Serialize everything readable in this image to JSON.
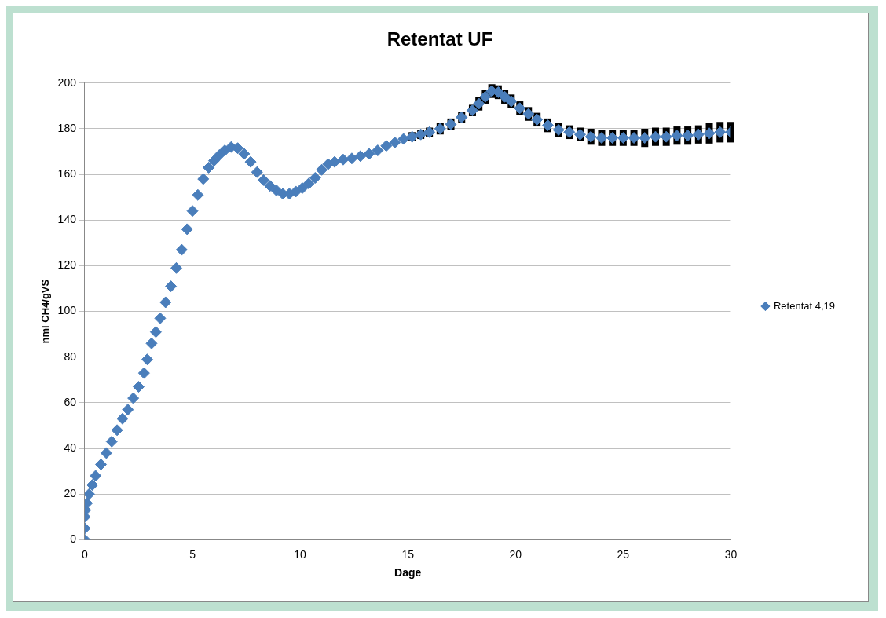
{
  "chart_data": {
    "type": "scatter",
    "title": "Retentat UF",
    "xlabel": "Dage",
    "ylabel": "nml CH4/gVS",
    "xlim": [
      0,
      30
    ],
    "xticks": [
      0,
      5,
      10,
      15,
      20,
      25,
      30
    ],
    "ylim": [
      0,
      200
    ],
    "yticks": [
      0,
      20,
      40,
      60,
      80,
      100,
      120,
      140,
      160,
      180,
      200
    ],
    "grid": "y",
    "legend": "right",
    "marker": "diamond",
    "series": [
      {
        "name": "Retentat 4,19",
        "color": "#4a7ebb",
        "x": [
          0,
          0,
          0,
          0.03,
          0.1,
          0.2,
          0.35,
          0.5,
          0.75,
          1,
          1.25,
          1.5,
          1.75,
          2,
          2.25,
          2.5,
          2.75,
          2.9,
          3.1,
          3.3,
          3.5,
          3.75,
          4,
          4.25,
          4.5,
          4.75,
          5,
          5.25,
          5.5,
          5.75,
          6,
          6.25,
          6.5,
          6.8,
          7.1,
          7.4,
          7.7,
          8,
          8.3,
          8.6,
          8.9,
          9.2,
          9.5,
          9.8,
          10.1,
          10.4,
          10.7,
          11,
          11.3,
          11.6,
          12,
          12.4,
          12.8,
          13.2,
          13.6,
          14,
          14.4,
          14.8,
          15.2,
          15.6,
          16,
          16.5,
          17,
          17.5,
          18,
          18.3,
          18.6,
          18.9,
          19.2,
          19.5,
          19.8,
          20.2,
          20.6,
          21,
          21.5,
          22,
          22.5,
          23,
          23.5,
          24,
          24.5,
          25,
          25.5,
          26,
          26.5,
          27,
          27.5,
          28,
          28.5,
          29,
          29.5,
          30
        ],
        "values": [
          0,
          5,
          10,
          13,
          16,
          20,
          24,
          28,
          33,
          38,
          43,
          48,
          53,
          57,
          62,
          67,
          73,
          79,
          86,
          91,
          97,
          104,
          111,
          119,
          127,
          136,
          144,
          151,
          158,
          163,
          166,
          168.5,
          170.5,
          172,
          171.5,
          169,
          165.5,
          161,
          157.5,
          155,
          153,
          151.5,
          151.5,
          152.5,
          154,
          156,
          158.5,
          162,
          164.5,
          165.5,
          166.5,
          167,
          168,
          169,
          170.5,
          172.5,
          174,
          175.5,
          176.5,
          177.5,
          178.5,
          180,
          182,
          185,
          188,
          191,
          194,
          196.5,
          196,
          194,
          192,
          189,
          186.5,
          184,
          181.5,
          179.5,
          178.5,
          177.5,
          176.5,
          176,
          176,
          176,
          176,
          176,
          176.5,
          176.5,
          177,
          177,
          177.5,
          178,
          178.5,
          178.5
        ],
        "errors": [
          null,
          null,
          null,
          null,
          null,
          null,
          null,
          null,
          null,
          null,
          null,
          null,
          null,
          null,
          null,
          null,
          null,
          null,
          null,
          null,
          null,
          null,
          null,
          null,
          null,
          null,
          null,
          null,
          null,
          null,
          null,
          null,
          null,
          null,
          null,
          null,
          null,
          null,
          null,
          null,
          null,
          null,
          null,
          null,
          null,
          null,
          null,
          null,
          null,
          null,
          null,
          null,
          null,
          null,
          null,
          null,
          null,
          null,
          2,
          2,
          2,
          2.5,
          2.5,
          2.5,
          2.5,
          3,
          3,
          3,
          3,
          3,
          3,
          3,
          3,
          3,
          3,
          3,
          3,
          3,
          3.5,
          3.5,
          3.5,
          3.5,
          3.5,
          4,
          4,
          4,
          4,
          4,
          4,
          4.5,
          4.5,
          4.5
        ]
      }
    ]
  }
}
